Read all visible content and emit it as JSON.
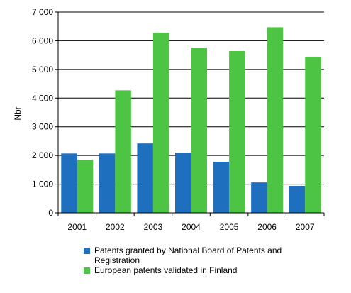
{
  "chart_data": {
    "type": "bar",
    "categories": [
      "2001",
      "2002",
      "2003",
      "2004",
      "2005",
      "2006",
      "2007"
    ],
    "series": [
      {
        "name": "Patents granted by National Board of Patents and Registration",
        "color": "#1f6fbf",
        "values": [
          2070,
          2070,
          2420,
          2100,
          1780,
          1060,
          940
        ]
      },
      {
        "name": "European patents validated in Finland",
        "color": "#4dc443",
        "values": [
          1850,
          4270,
          6280,
          5760,
          5640,
          6470,
          5440
        ]
      }
    ],
    "ylabel": "Nbr",
    "ylim": [
      0,
      7000
    ],
    "yticks": [
      0,
      1000,
      2000,
      3000,
      4000,
      5000,
      6000,
      7000
    ],
    "ytick_labels": [
      "0",
      "1 000",
      "2 000",
      "3 000",
      "4 000",
      "5 000",
      "6 000",
      "7 000"
    ],
    "grid": true,
    "legend_position": "bottom"
  }
}
